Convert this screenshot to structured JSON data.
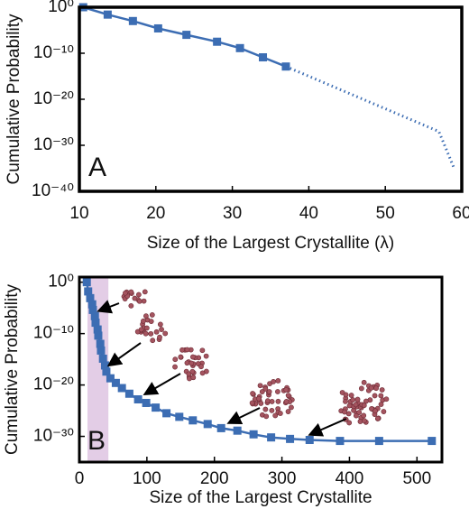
{
  "chart_data": [
    {
      "type": "line",
      "annotation": "A",
      "x_label": "Size of the Largest Crystallite (λ)",
      "y_label": "Cumulative Probability",
      "log_y": true,
      "xlim": [
        10,
        60
      ],
      "ylim": [
        1e-40,
        1
      ],
      "xticks": [
        10,
        20,
        30,
        40,
        50,
        60
      ],
      "yticks": [
        {
          "value": 1,
          "label": "10⁰"
        },
        {
          "value": 1e-10,
          "label": "10⁻¹⁰"
        },
        {
          "value": 1e-20,
          "label": "10⁻²⁰"
        },
        {
          "value": 1e-30,
          "label": "10⁻³⁰"
        },
        {
          "value": 1e-40,
          "label": "10⁻⁴⁰"
        }
      ],
      "series": [
        {
          "color": "#3c6db3",
          "style": "solid",
          "marker": "square",
          "x": [
            10.5,
            13.7,
            17,
            20.3,
            24,
            28,
            31,
            34,
            37
          ],
          "values": [
            1,
            0.025,
            0.001,
            2.5e-05,
            1e-06,
            3.2e-08,
            1.3e-09,
            1.3e-11,
            1.3e-13
          ]
        },
        {
          "color": "#3c6db3",
          "style": "dotted",
          "marker": null,
          "x": [
            37,
            57,
            59
          ],
          "values": [
            1.3e-13,
            1e-27,
            1e-35
          ]
        }
      ]
    },
    {
      "type": "line",
      "annotation": "B",
      "x_label": "Size of the Largest Crystallite",
      "y_label": "Cumulative Probability",
      "log_y": true,
      "xlim": [
        0,
        537
      ],
      "ylim": [
        1e-35,
        10
      ],
      "xticks": [
        0,
        100,
        200,
        300,
        400,
        500
      ],
      "yticks": [
        {
          "value": 1,
          "label": "10⁰"
        },
        {
          "value": 1e-10,
          "label": "10⁻¹⁰"
        },
        {
          "value": 1e-20,
          "label": "10⁻²⁰"
        },
        {
          "value": 1e-30,
          "label": "10⁻³⁰"
        }
      ],
      "shaded_xrange": [
        12,
        43
      ],
      "shade_color": "#e3cde6",
      "series": [
        {
          "color": "#3c6db3",
          "style": "solid",
          "marker": "square",
          "x": [
            11,
            13,
            16,
            19,
            20,
            23,
            24,
            27,
            28,
            31,
            32,
            35,
            38,
            40,
            46,
            54,
            63,
            74,
            87,
            99,
            113,
            129,
            148,
            168,
            190,
            210,
            234,
            258,
            284,
            312,
            341,
            386,
            444,
            522
          ],
          "values": [
            1,
            0.016,
            0.00079,
            5e-05,
            4e-06,
            2.5e-07,
            1.3e-08,
            6.3e-10,
            4e-11,
            1e-12,
            5e-14,
            1.3e-15,
            6.3e-17,
            4e-18,
            2e-19,
            2.5e-20,
            2.5e-21,
            2e-22,
            1.6e-23,
            3.2e-24,
            4e-25,
            3.2e-26,
            6.3e-27,
            1.3e-27,
            2.5e-28,
            4e-29,
            1.3e-29,
            2.5e-30,
            6.3e-31,
            3.2e-31,
            2e-31,
            1.3e-31,
            1.3e-31,
            1.3e-31
          ]
        }
      ]
    }
  ]
}
